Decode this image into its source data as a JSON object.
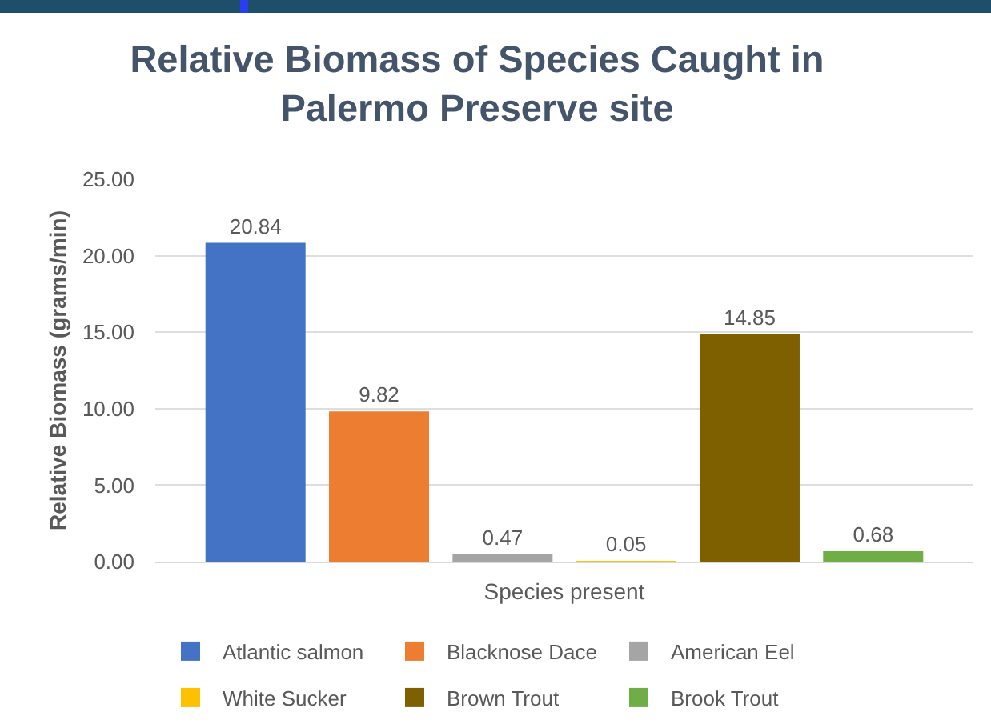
{
  "chart_data": {
    "type": "bar",
    "title": "Relative Biomass of Species Caught in Palermo Preserve site",
    "xlabel": "Species present",
    "ylabel": "Relative Biomass (grams/min)",
    "categories": [
      null
    ],
    "series": [
      {
        "name": "Atlantic salmon",
        "color": "#4472c4",
        "values": [
          20.84
        ]
      },
      {
        "name": "Blacknose Dace",
        "color": "#ed7d31",
        "values": [
          9.82
        ]
      },
      {
        "name": "American Eel",
        "color": "#a5a5a5",
        "values": [
          0.47
        ]
      },
      {
        "name": "White Sucker",
        "color": "#ffc000",
        "values": [
          0.05
        ]
      },
      {
        "name": "Brown Trout",
        "color": "#7f6000",
        "values": [
          14.85
        ]
      },
      {
        "name": "Brook Trout",
        "color": "#70ad47",
        "values": [
          0.68
        ]
      }
    ],
    "ylim": [
      0,
      25
    ],
    "yticks": [
      {
        "value": 0,
        "label": "0.00"
      },
      {
        "value": 5,
        "label": "5.00"
      },
      {
        "value": 10,
        "label": "10.00"
      },
      {
        "value": 15,
        "label": "15.00"
      },
      {
        "value": 20,
        "label": "20.00"
      },
      {
        "value": 25,
        "label": "25.00"
      }
    ],
    "grid": "y",
    "legend": "bottom",
    "data_labels": true
  }
}
